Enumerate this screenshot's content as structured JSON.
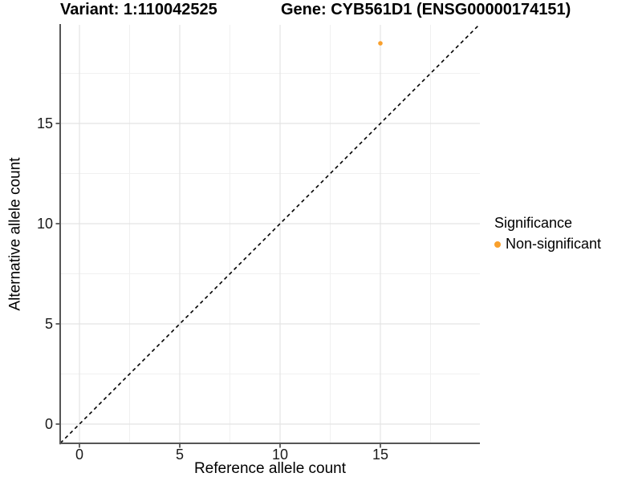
{
  "legend": {
    "title": "Significance",
    "items": [
      {
        "label": "Non-significant",
        "color": "#F9A02C"
      }
    ]
  },
  "chart_data": {
    "type": "scatter",
    "titles": [
      "Variant: 1:110042525",
      "Gene: CYB561D1 (ENSG00000174151)"
    ],
    "xlabel": "Reference allele count",
    "ylabel": "Alternative allele count",
    "xlim": [
      -0.95,
      19.95
    ],
    "ylim": [
      -0.95,
      19.95
    ],
    "x_ticks": [
      0,
      5,
      10,
      15
    ],
    "y_ticks": [
      0,
      5,
      10,
      15
    ],
    "x_minor_ticks": [
      2.5,
      7.5,
      12.5,
      17.5
    ],
    "y_minor_ticks": [
      2.5,
      7.5,
      12.5,
      17.5
    ],
    "grid": "major and minor gridlines, light gray on white",
    "reference_line": {
      "kind": "identity y=x",
      "style": "dashed",
      "color": "#000000"
    },
    "series": [
      {
        "name": "Non-significant",
        "color": "#F9A02C",
        "points": [
          [
            15,
            19
          ]
        ]
      }
    ],
    "legend_position": "right",
    "colors": {
      "grid_major": "#E4E4E4",
      "grid_minor": "#F0F0F0",
      "axis_line": "#555555",
      "tick": "#333333",
      "text": "#1A1A1A",
      "point": "#F9A02C"
    }
  }
}
